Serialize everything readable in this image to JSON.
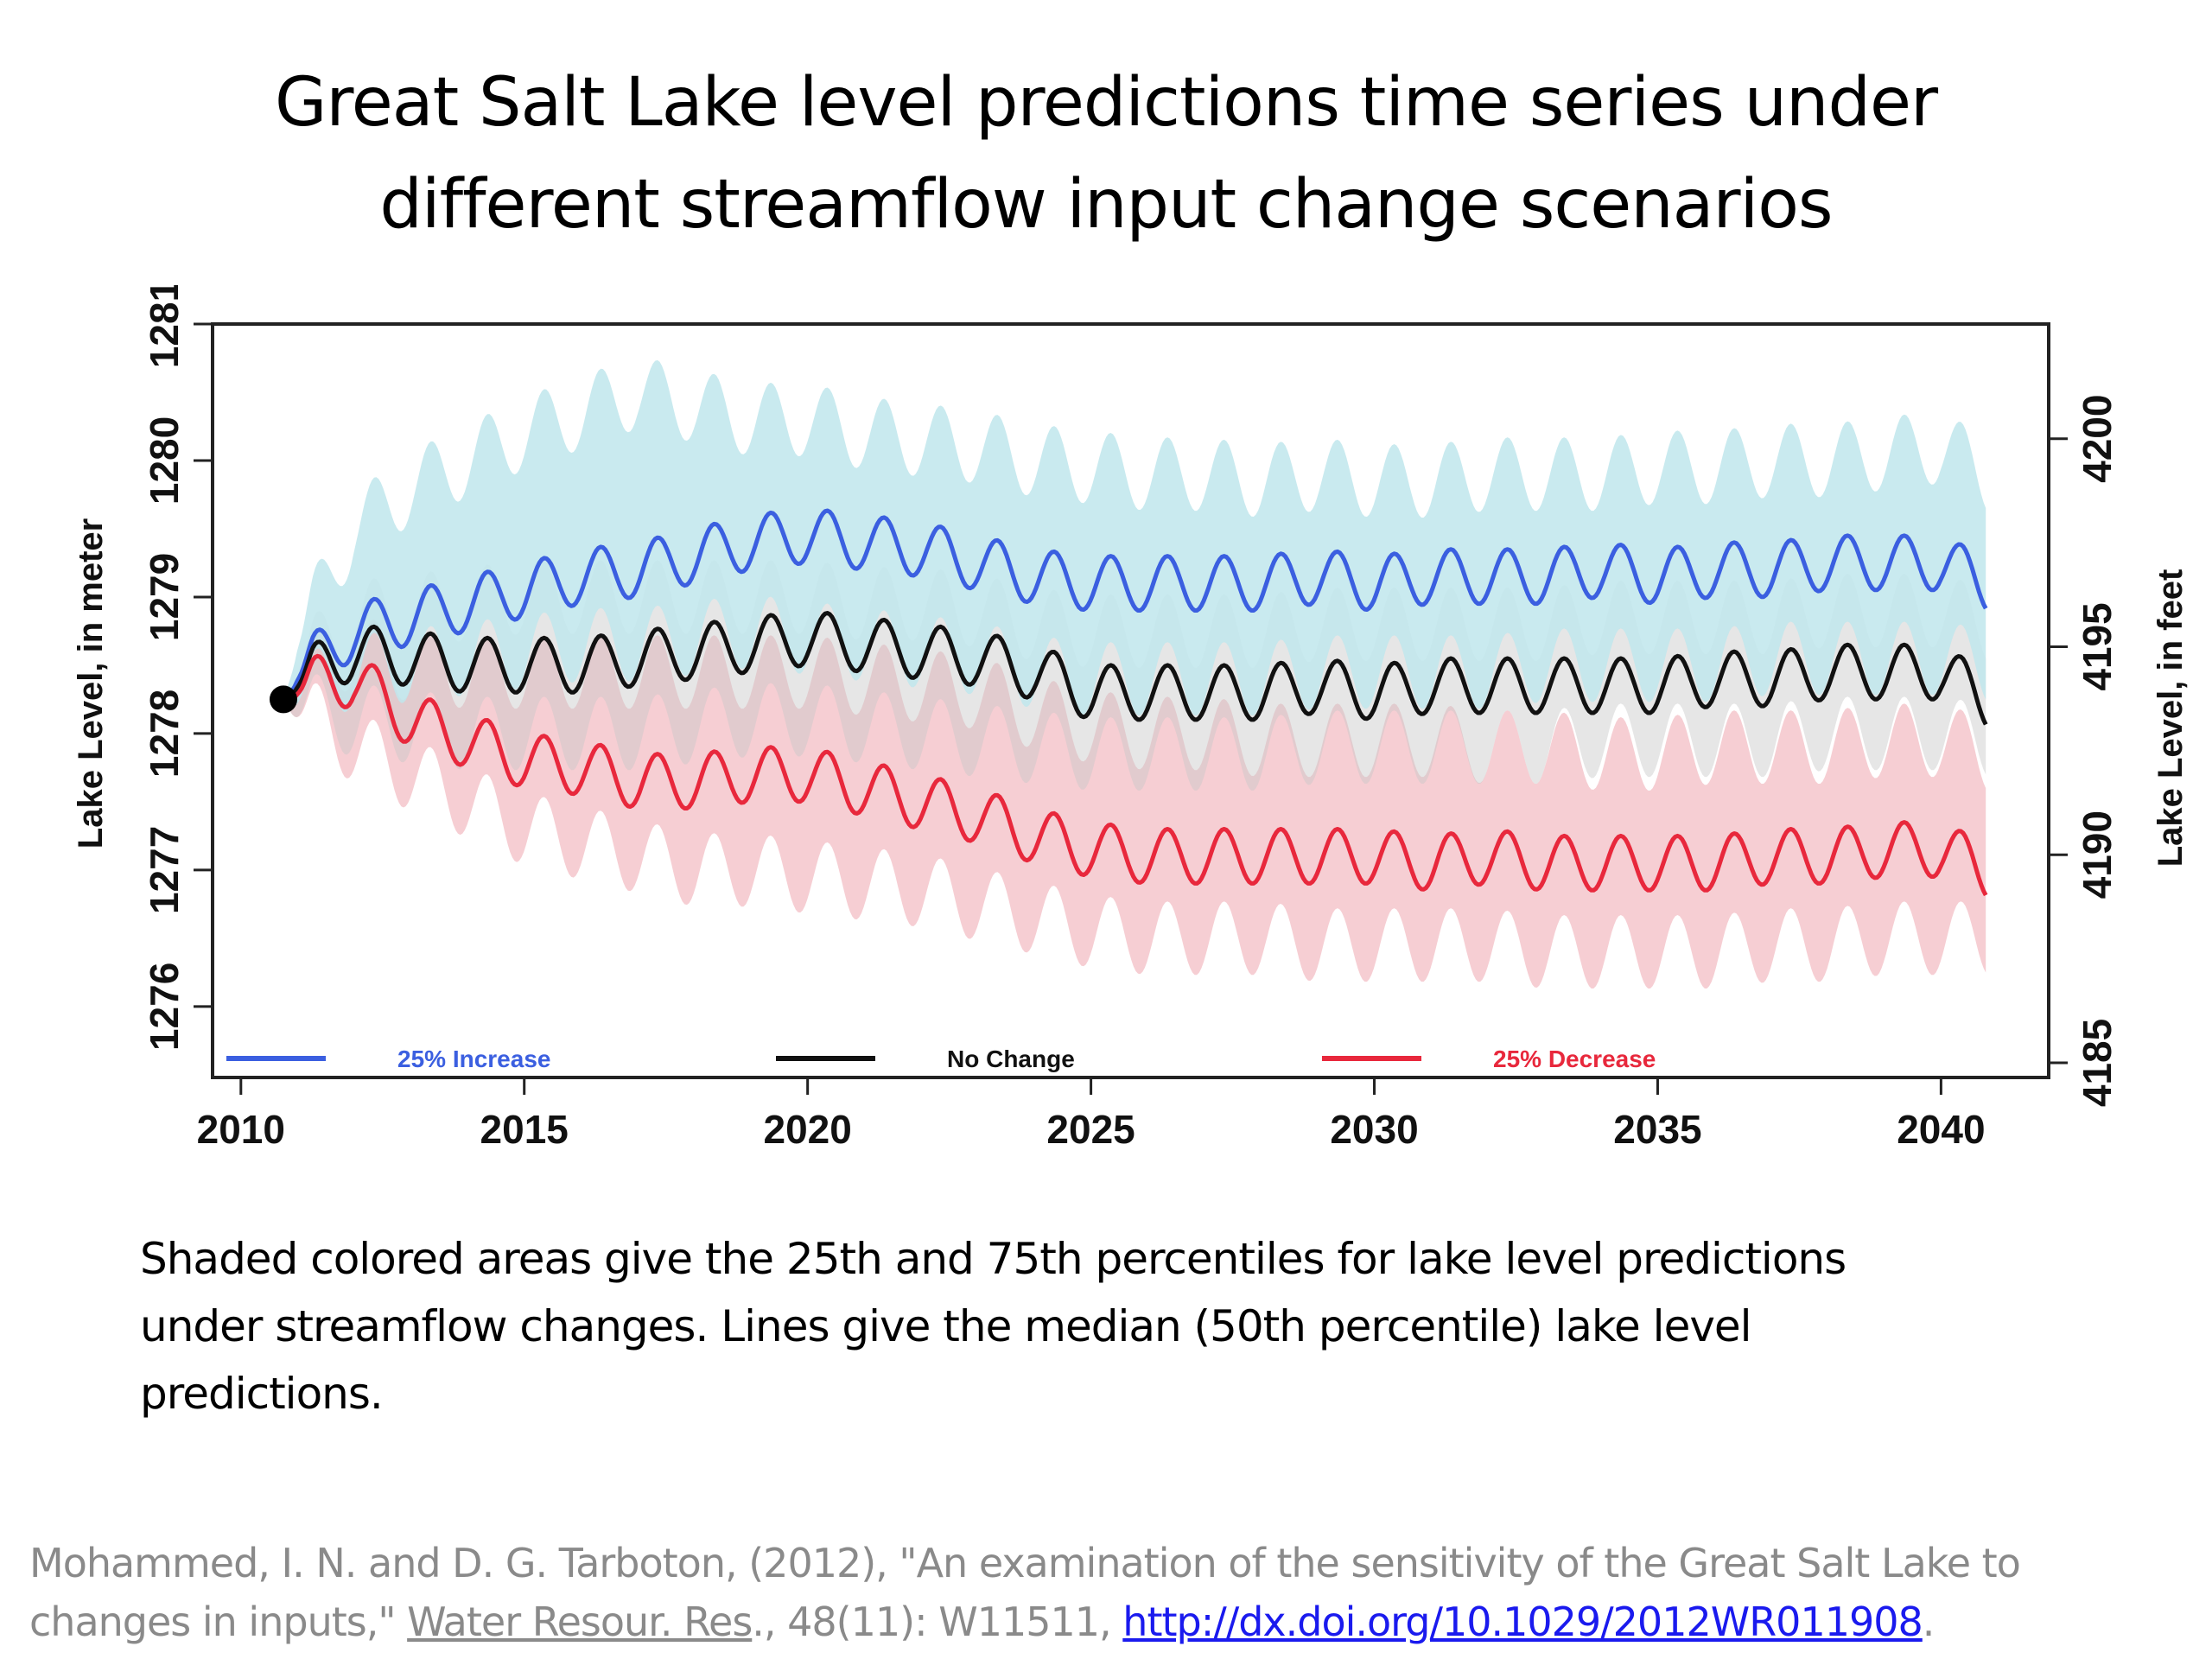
{
  "slide": {
    "title_line1": "Great Salt Lake level predictions time series under",
    "title_line2": "different streamflow input change scenarios",
    "caption_line1": "Shaded colored areas give the 25th and 75th percentiles for lake level predictions",
    "caption_line2": "under streamflow changes. Lines give the median (50th percentile) lake level",
    "caption_line3": "predictions.",
    "citation_part1": "Mohammed, I. N. and D. G. Tarboton, (2012), \"An examination of the sensitivity of the Great Salt Lake to",
    "citation_part2": "changes in inputs,\" ",
    "citation_journal": "Water Resour. Res",
    "citation_part3": "., 48(11): W11511, ",
    "citation_link": "http://dx.doi.org/10.1029/2012WR011908",
    "citation_end": "."
  },
  "chart_data": {
    "type": "line",
    "title": "",
    "xlabel": "",
    "ylabel": "Lake Level, in meter",
    "ylabel_right": "Lake Level, in feet",
    "xlim": [
      2009.5,
      2041.9
    ],
    "ylim": [
      1275.48,
      1281.0
    ],
    "x_ticks": [
      2010,
      2015,
      2020,
      2025,
      2030,
      2035,
      2040
    ],
    "y_ticks": [
      1276,
      1277,
      1278,
      1279,
      1280,
      1281
    ],
    "y_ticks_right": [
      4185,
      4190,
      4195,
      4200
    ],
    "grid": false,
    "legend_position": "bottom",
    "start_point": {
      "x": 2010.75,
      "y": 1278.25,
      "label": "observed start"
    },
    "seasonal_amplitude_m": 0.2,
    "x": [
      2011,
      2012,
      2013,
      2014,
      2015,
      2016,
      2017,
      2018,
      2019,
      2020,
      2021,
      2022,
      2023,
      2024,
      2025,
      2026,
      2027,
      2028,
      2029,
      2030,
      2031,
      2032,
      2033,
      2034,
      2035,
      2036,
      2037,
      2038,
      2039,
      2040,
      2040.8
    ],
    "series": [
      {
        "name": "25% Increase",
        "color": "#3b5fe0",
        "band_color": "#bfe6ec",
        "median": [
          1278.45,
          1278.75,
          1278.85,
          1278.95,
          1279.05,
          1279.15,
          1279.2,
          1279.3,
          1279.4,
          1279.45,
          1279.4,
          1279.35,
          1279.25,
          1279.15,
          1279.1,
          1279.1,
          1279.1,
          1279.1,
          1279.15,
          1279.1,
          1279.15,
          1279.15,
          1279.15,
          1279.2,
          1279.15,
          1279.2,
          1279.2,
          1279.25,
          1279.25,
          1279.25,
          1279.1
        ],
        "p75": [
          1278.7,
          1279.5,
          1279.8,
          1280.0,
          1280.2,
          1280.35,
          1280.5,
          1280.4,
          1280.3,
          1280.3,
          1280.2,
          1280.15,
          1280.1,
          1280.0,
          1279.95,
          1279.9,
          1279.9,
          1279.85,
          1279.9,
          1279.85,
          1279.85,
          1279.9,
          1279.9,
          1279.9,
          1279.95,
          1279.95,
          1280.0,
          1280.0,
          1280.05,
          1280.1,
          1279.9
        ],
        "p25": [
          1278.3,
          1278.45,
          1278.5,
          1278.55,
          1278.6,
          1278.65,
          1278.65,
          1278.7,
          1278.75,
          1278.7,
          1278.65,
          1278.6,
          1278.55,
          1278.45,
          1278.4,
          1278.4,
          1278.4,
          1278.4,
          1278.45,
          1278.45,
          1278.45,
          1278.45,
          1278.5,
          1278.5,
          1278.5,
          1278.5,
          1278.55,
          1278.55,
          1278.55,
          1278.55,
          1278.5
        ]
      },
      {
        "name": "No Change",
        "color": "#111111",
        "band_color": "#c8c8c8",
        "median": [
          1278.4,
          1278.6,
          1278.55,
          1278.5,
          1278.5,
          1278.5,
          1278.55,
          1278.6,
          1278.65,
          1278.7,
          1278.65,
          1278.6,
          1278.55,
          1278.45,
          1278.3,
          1278.3,
          1278.3,
          1278.3,
          1278.35,
          1278.3,
          1278.35,
          1278.35,
          1278.35,
          1278.35,
          1278.35,
          1278.4,
          1278.4,
          1278.45,
          1278.45,
          1278.45,
          1278.25
        ],
        "p75": [
          1278.5,
          1278.85,
          1278.9,
          1278.95,
          1279.0,
          1279.0,
          1279.0,
          1279.0,
          1279.0,
          1279.0,
          1278.95,
          1278.95,
          1278.9,
          1278.8,
          1278.75,
          1278.75,
          1278.75,
          1278.75,
          1278.8,
          1278.8,
          1278.8,
          1278.8,
          1278.8,
          1278.85,
          1278.85,
          1278.85,
          1278.85,
          1278.9,
          1278.9,
          1278.9,
          1278.8
        ],
        "p25": [
          1278.2,
          1278.1,
          1278.05,
          1278.0,
          1278.0,
          1278.0,
          1278.0,
          1278.05,
          1278.1,
          1278.1,
          1278.05,
          1278.0,
          1277.95,
          1277.9,
          1277.85,
          1277.85,
          1277.85,
          1277.85,
          1277.9,
          1277.9,
          1277.9,
          1277.9,
          1277.9,
          1277.95,
          1277.95,
          1277.95,
          1277.95,
          1278.0,
          1278.0,
          1278.0,
          1277.95
        ]
      },
      {
        "name": "25% Decrease",
        "color": "#e8283c",
        "band_color": "#f4c6cb",
        "median": [
          1278.35,
          1278.4,
          1278.1,
          1277.95,
          1277.8,
          1277.75,
          1277.65,
          1277.65,
          1277.7,
          1277.7,
          1277.6,
          1277.5,
          1277.4,
          1277.25,
          1277.15,
          1277.1,
          1277.1,
          1277.1,
          1277.1,
          1277.1,
          1277.05,
          1277.1,
          1277.05,
          1277.05,
          1277.05,
          1277.05,
          1277.1,
          1277.1,
          1277.15,
          1277.15,
          1277.0
        ],
        "p75": [
          1278.45,
          1278.6,
          1278.5,
          1278.45,
          1278.45,
          1278.45,
          1278.45,
          1278.45,
          1278.45,
          1278.45,
          1278.4,
          1278.35,
          1278.3,
          1278.15,
          1278.05,
          1278.0,
          1278.0,
          1277.95,
          1277.95,
          1277.95,
          1277.95,
          1277.9,
          1277.9,
          1277.85,
          1277.85,
          1277.9,
          1277.9,
          1277.9,
          1277.95,
          1277.95,
          1277.85
        ],
        "p25": [
          1278.2,
          1277.9,
          1277.7,
          1277.5,
          1277.3,
          1277.2,
          1277.1,
          1277.0,
          1277.0,
          1276.95,
          1276.9,
          1276.85,
          1276.75,
          1276.65,
          1276.55,
          1276.5,
          1276.5,
          1276.5,
          1276.45,
          1276.45,
          1276.45,
          1276.45,
          1276.4,
          1276.4,
          1276.4,
          1276.4,
          1276.45,
          1276.45,
          1276.5,
          1276.5,
          1276.5
        ]
      }
    ]
  }
}
